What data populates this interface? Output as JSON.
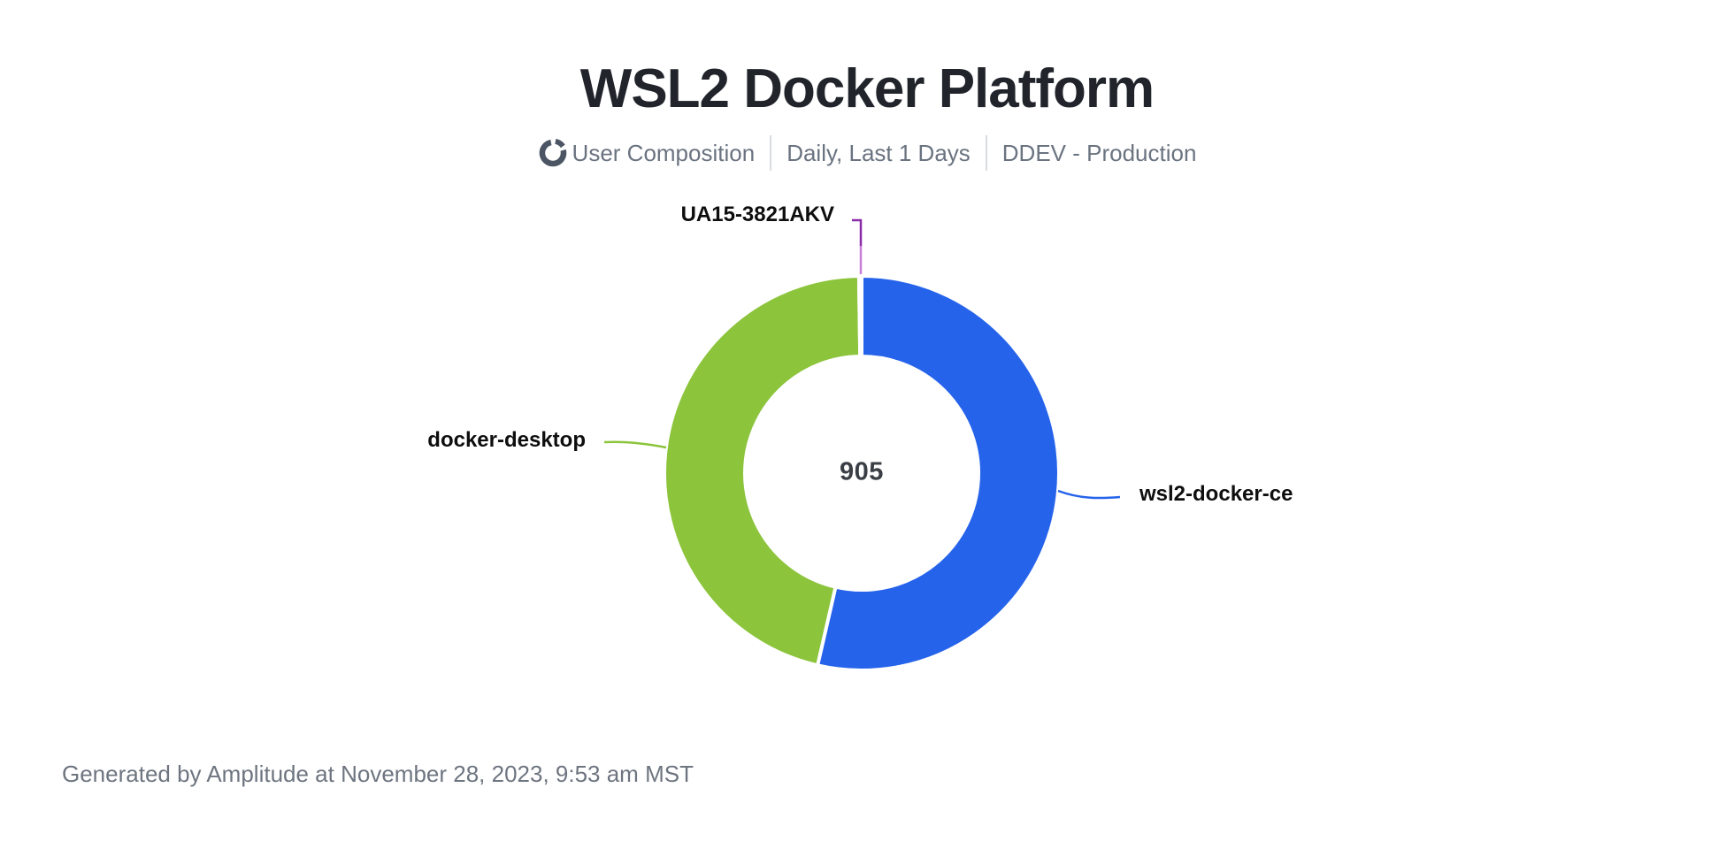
{
  "page": {
    "background": "#ffffff"
  },
  "header": {
    "title": "WSL2 Docker Platform",
    "subtitle": {
      "chart_type_label": "User Composition",
      "date_range": "Daily, Last 1 Days",
      "segment": "DDEV - Production"
    }
  },
  "chart_data": {
    "type": "pie",
    "subtype": "donut",
    "title": "WSL2 Docker Platform",
    "center_total": "905",
    "total_users": 905,
    "start_angle_deg": 0,
    "clockwise": true,
    "legend_position": "callout-labels",
    "series": [
      {
        "name": "wsl2-docker-ce",
        "value": 485,
        "color": "#2563EB"
      },
      {
        "name": "docker-desktop",
        "value": 418,
        "color": "#8CC43C"
      },
      {
        "name": "UA15-3821AKV",
        "value": 2,
        "color": "#8A2BA8",
        "leader_light_color": "#C77FD6"
      }
    ]
  },
  "icons": {
    "donut_icon_color": "#4b5563"
  },
  "footer": {
    "generated_note": "Generated by Amplitude at November 28, 2023, 9:53 am MST"
  }
}
